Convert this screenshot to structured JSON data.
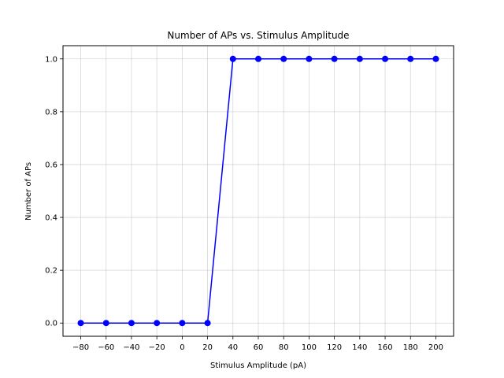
{
  "chart_data": {
    "type": "line",
    "title": "Number of APs vs. Stimulus Amplitude",
    "xlabel": "Stimulus Amplitude (pA)",
    "ylabel": "Number of APs",
    "x": [
      -80,
      -60,
      -40,
      -20,
      0,
      20,
      40,
      60,
      80,
      100,
      120,
      140,
      160,
      180,
      200
    ],
    "series": [
      {
        "values": [
          0,
          0,
          0,
          0,
          0,
          0,
          1,
          1,
          1,
          1,
          1,
          1,
          1,
          1,
          1
        ],
        "color": "#0000ff",
        "marker": "circle"
      }
    ],
    "xticks": [
      -80,
      -60,
      -40,
      -20,
      0,
      20,
      40,
      60,
      80,
      100,
      120,
      140,
      160,
      180,
      200
    ],
    "xtick_labels": [
      "−80",
      "−60",
      "−40",
      "−20",
      "0",
      "20",
      "40",
      "60",
      "80",
      "100",
      "120",
      "140",
      "160",
      "180",
      "200"
    ],
    "yticks": [
      0.0,
      0.2,
      0.4,
      0.6,
      0.8,
      1.0
    ],
    "ytick_labels": [
      "0.0",
      "0.2",
      "0.4",
      "0.6",
      "0.8",
      "1.0"
    ],
    "xlim": [
      -94,
      214
    ],
    "ylim": [
      -0.05,
      1.05
    ],
    "grid": true
  }
}
